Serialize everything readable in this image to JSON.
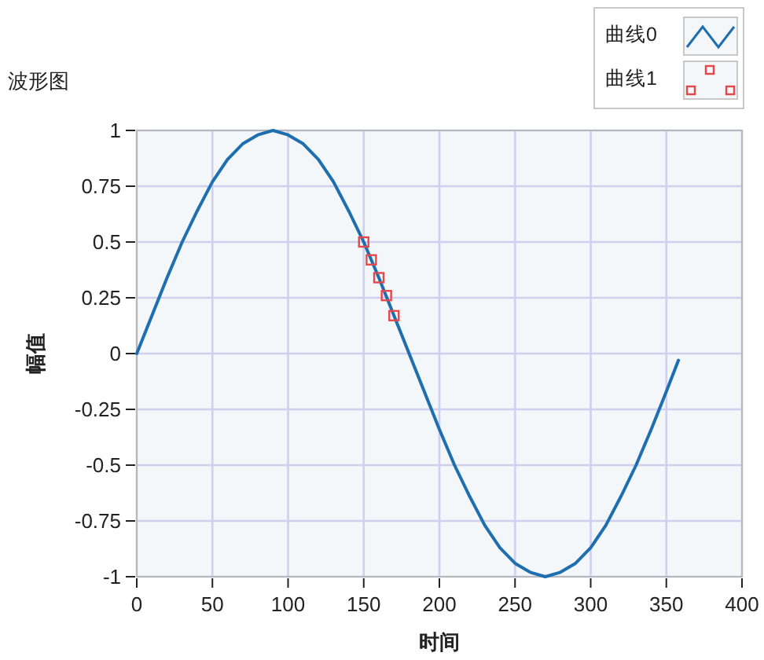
{
  "chart_data": {
    "type": "line",
    "title": "波形图",
    "xlabel": "时间",
    "ylabel": "幅值",
    "xlim": [
      0,
      400
    ],
    "xticks": [
      0,
      50,
      100,
      150,
      200,
      250,
      300,
      350,
      400
    ],
    "ylim": [
      -1,
      1
    ],
    "yticks": [
      -1,
      -0.75,
      -0.5,
      -0.25,
      0,
      0.25,
      0.5,
      0.75,
      1
    ],
    "grid": true,
    "legend": "top right",
    "series": [
      {
        "name": "曲线0",
        "color": "#1f6fb0",
        "x": [
          0,
          10,
          20,
          30,
          40,
          50,
          60,
          70,
          80,
          90,
          100,
          110,
          120,
          130,
          140,
          150,
          160,
          170,
          180,
          190,
          200,
          210,
          220,
          230,
          240,
          250,
          260,
          270,
          280,
          290,
          300,
          310,
          320,
          330,
          340,
          350,
          358
        ],
        "values": [
          0,
          0.17,
          0.34,
          0.5,
          0.64,
          0.77,
          0.87,
          0.94,
          0.98,
          1,
          0.98,
          0.94,
          0.87,
          0.77,
          0.64,
          0.5,
          0.34,
          0.17,
          0,
          -0.17,
          -0.34,
          -0.5,
          -0.64,
          -0.77,
          -0.87,
          -0.94,
          -0.98,
          -1,
          -0.98,
          -0.94,
          -0.87,
          -0.77,
          -0.64,
          -0.5,
          -0.34,
          -0.17,
          -0.03
        ]
      },
      {
        "name": "曲线1",
        "type": "scatter",
        "marker": "square",
        "color": "#e8474a",
        "x": [
          150,
          155,
          160,
          165,
          170
        ],
        "values": [
          0.5,
          0.42,
          0.34,
          0.26,
          0.17
        ]
      }
    ]
  }
}
